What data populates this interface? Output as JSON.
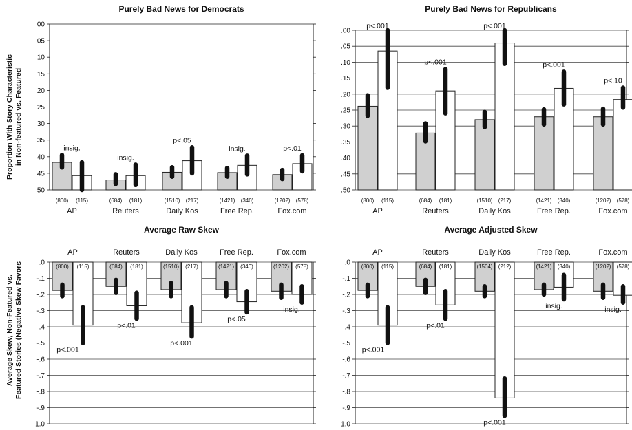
{
  "y_axis_labels": {
    "top": [
      "Proportion With Story Characteristic",
      "in Non-featured vs. Featured"
    ],
    "bottom": [
      "Average Skew, Non-Featured vs.",
      "Featured Stories (Negative Skew Favors"
    ]
  },
  "series_colors": {
    "non_featured": "#d0d0d0",
    "featured": "#ffffff"
  },
  "chart_data": [
    {
      "type": "bar",
      "title": "Purely Bad News for Democrats",
      "categories": [
        "AP",
        "Reuters",
        "Daily Kos",
        "Free Rep.",
        "Fox.com"
      ],
      "counts": [
        [
          "(800)",
          "(115)"
        ],
        [
          "(684)",
          "(181)"
        ],
        [
          "(1510)",
          "(217)"
        ],
        [
          "(1421)",
          "(340)"
        ],
        [
          "(1202)",
          "(578)"
        ]
      ],
      "series": [
        {
          "values": [
            0.083,
            0.03,
            0.053,
            0.052,
            0.046
          ],
          "ci_low": [
            0.068,
            0.018,
            0.04,
            0.04,
            0.033
          ],
          "ci_high": [
            0.105,
            0.047,
            0.068,
            0.066,
            0.06
          ]
        },
        {
          "values": [
            0.043,
            0.043,
            0.088,
            0.074,
            0.079
          ],
          "ci_low": [
            0.0,
            0.015,
            0.05,
            0.047,
            0.056
          ],
          "ci_high": [
            0.083,
            0.076,
            0.128,
            0.103,
            0.104
          ]
        }
      ],
      "annotations": [
        "insig.",
        "insig.",
        "p<.05",
        "insig.",
        "p<.01"
      ],
      "yticks": [
        ".00",
        ".05",
        ".10",
        ".15",
        ".20",
        ".25",
        ".30",
        ".35",
        ".40",
        ".45",
        ".50"
      ],
      "ylim": [
        0,
        0.5
      ],
      "grid": false
    },
    {
      "type": "bar",
      "title": "Purely Bad News for Republicans",
      "categories": [
        "AP",
        "Reuters",
        "Daily Kos",
        "Free Rep.",
        "Fox.com"
      ],
      "counts": [
        [
          "(800)",
          "(115)"
        ],
        [
          "(684)",
          "(181)"
        ],
        [
          "(1510)",
          "(217)"
        ],
        [
          "(1421)",
          "(340)"
        ],
        [
          "(1202)",
          "(578)"
        ]
      ],
      "series": [
        {
          "values": [
            0.262,
            0.178,
            0.22,
            0.229,
            0.229
          ],
          "ci_low": [
            0.232,
            0.152,
            0.197,
            0.205,
            0.205
          ],
          "ci_high": [
            0.296,
            0.208,
            0.244,
            0.252,
            0.254
          ]
        },
        {
          "values": [
            0.435,
            0.31,
            0.46,
            0.318,
            0.283
          ],
          "ci_low": [
            0.32,
            0.24,
            0.395,
            0.268,
            0.258
          ],
          "ci_high": [
            0.5,
            0.378,
            0.5,
            0.37,
            0.32
          ]
        }
      ],
      "annotations": [
        "p<.001",
        "p<.001",
        "p<.001",
        "p<.001",
        "p<.10"
      ],
      "yticks": [
        ".00",
        ".05",
        ".10",
        ".15",
        ".20",
        ".25",
        ".30",
        ".35",
        ".40",
        ".45",
        ".50"
      ],
      "ylim": [
        0,
        0.5
      ],
      "grid": true
    },
    {
      "type": "bar",
      "title": "Average Raw Skew",
      "categories": [
        "AP",
        "Reuters",
        "Daily Kos",
        "Free Rep.",
        "Fox.com"
      ],
      "counts": [
        [
          "(800)",
          "(115)"
        ],
        [
          "(684)",
          "(181)"
        ],
        [
          "(1510)",
          "(217)"
        ],
        [
          "(1421)",
          "(340)"
        ],
        [
          "(1202)",
          "(578)"
        ]
      ],
      "series": [
        {
          "values": [
            -0.175,
            -0.15,
            -0.17,
            -0.17,
            -0.18
          ],
          "ci_low": [
            -0.21,
            -0.19,
            -0.21,
            -0.21,
            -0.22
          ],
          "ci_high": [
            -0.14,
            -0.11,
            -0.13,
            -0.13,
            -0.14
          ]
        },
        {
          "values": [
            -0.39,
            -0.27,
            -0.375,
            -0.245,
            -0.2
          ],
          "ci_low": [
            -0.5,
            -0.35,
            -0.46,
            -0.31,
            -0.25
          ],
          "ci_high": [
            -0.28,
            -0.19,
            -0.28,
            -0.18,
            -0.15
          ]
        }
      ],
      "annotations": [
        "p<.001",
        "p<.01",
        "p<.001",
        "p<.05",
        "insig."
      ],
      "yticks": [
        ".0",
        "-.1",
        "-.2",
        "-.3",
        "-.4",
        "-.5",
        "-.6",
        "-.7",
        "-.8",
        "-.9",
        "-1.0"
      ],
      "ylim": [
        -1.0,
        0
      ],
      "grid": true
    },
    {
      "type": "bar",
      "title": "Average Adjusted Skew",
      "categories": [
        "AP",
        "Reuters",
        "Daily Kos",
        "Free Rep.",
        "Fox.com"
      ],
      "counts": [
        [
          "(800)",
          "(115)"
        ],
        [
          "(684)",
          "(181)"
        ],
        [
          "(1504)",
          "(212)"
        ],
        [
          "(1421)",
          "(340)"
        ],
        [
          "(1202)",
          "(578)"
        ]
      ],
      "series": [
        {
          "values": [
            -0.175,
            -0.15,
            -0.18,
            -0.17,
            -0.18
          ],
          "ci_low": [
            -0.21,
            -0.19,
            -0.21,
            -0.2,
            -0.22
          ],
          "ci_high": [
            -0.14,
            -0.11,
            -0.15,
            -0.14,
            -0.14
          ]
        },
        {
          "values": [
            -0.39,
            -0.265,
            -0.84,
            -0.155,
            -0.205
          ],
          "ci_low": [
            -0.5,
            -0.35,
            -0.95,
            -0.23,
            -0.25
          ],
          "ci_high": [
            -0.28,
            -0.18,
            -0.72,
            -0.08,
            -0.15
          ]
        }
      ],
      "annotations": [
        "p<.001",
        "p<.01",
        "p<.001",
        "insig.",
        "insig."
      ],
      "yticks": [
        ".0",
        "-.1",
        "-.2",
        "-.3",
        "-.4",
        "-.5",
        "-.6",
        "-.7",
        "-.8",
        "-.9",
        "-1.0"
      ],
      "ylim": [
        -1.0,
        0
      ],
      "grid": true
    }
  ]
}
